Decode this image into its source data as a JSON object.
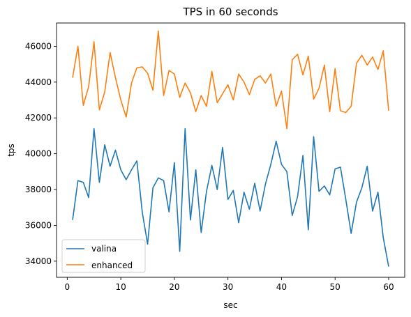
{
  "chart_data": {
    "type": "line",
    "title": "TPS in 60 seconds",
    "xlabel": "sec",
    "ylabel": "tps",
    "xlim": [
      -2,
      63
    ],
    "ylim": [
      33100,
      47300
    ],
    "xticks": [
      0,
      10,
      20,
      30,
      40,
      50,
      60
    ],
    "yticks": [
      34000,
      36000,
      38000,
      40000,
      42000,
      44000,
      46000
    ],
    "grid": false,
    "legend_position": "lower-left",
    "x": [
      1,
      2,
      3,
      4,
      5,
      6,
      7,
      8,
      9,
      10,
      11,
      12,
      13,
      14,
      15,
      16,
      17,
      18,
      19,
      20,
      21,
      22,
      23,
      24,
      25,
      26,
      27,
      28,
      29,
      30,
      31,
      32,
      33,
      34,
      35,
      36,
      37,
      38,
      39,
      40,
      41,
      42,
      43,
      44,
      45,
      46,
      47,
      48,
      49,
      50,
      51,
      52,
      53,
      54,
      55,
      56,
      57,
      58,
      59,
      60
    ],
    "series": [
      {
        "name": "valina",
        "color": "#1f77b4",
        "values": [
          36300,
          38500,
          38400,
          37550,
          41400,
          38400,
          40500,
          39300,
          40200,
          39100,
          38550,
          39100,
          39600,
          36750,
          34950,
          38100,
          38650,
          38500,
          36750,
          39500,
          34550,
          41400,
          36300,
          39100,
          35600,
          37900,
          39350,
          38000,
          40350,
          37450,
          37950,
          36150,
          37850,
          36900,
          38350,
          36800,
          38300,
          39400,
          40700,
          39400,
          39000,
          36550,
          37600,
          39900,
          35750,
          40950,
          37900,
          38200,
          37700,
          39150,
          39250,
          37450,
          35550,
          37300,
          38100,
          39300,
          36800,
          37850,
          35300,
          33700
        ]
      },
      {
        "name": "enhanced",
        "color": "#ff7f0e",
        "values": [
          44250,
          46000,
          42700,
          43750,
          46250,
          42450,
          43450,
          45650,
          44250,
          43000,
          42050,
          43950,
          44800,
          44850,
          44500,
          43550,
          46850,
          43250,
          44650,
          44450,
          43150,
          43950,
          43400,
          42350,
          43250,
          42650,
          44600,
          42850,
          43350,
          43850,
          43000,
          44450,
          44000,
          43300,
          44150,
          44350,
          43950,
          44450,
          42650,
          43500,
          41400,
          45250,
          45550,
          44400,
          45450,
          43050,
          43650,
          44950,
          42350,
          44750,
          42400,
          42300,
          42650,
          45050,
          45500,
          44950,
          45400,
          44700,
          45750,
          42400
        ]
      }
    ]
  }
}
